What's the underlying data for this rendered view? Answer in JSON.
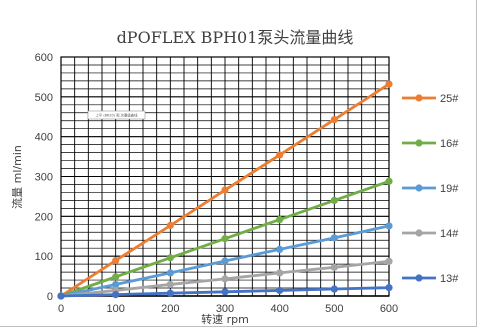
{
  "chart_data": {
    "type": "line",
    "title": "dPOFLEX BPH01泵头流量曲线",
    "xlabel": "转速 rpm",
    "ylabel": "流量 ml/min",
    "x": [
      0,
      100,
      200,
      300,
      400,
      500,
      600
    ],
    "xlim": [
      0,
      600
    ],
    "ylim": [
      0,
      600
    ],
    "xticks": [
      "0",
      "100",
      "200",
      "300",
      "400",
      "500",
      "600"
    ],
    "yticks": [
      "0",
      "100",
      "200",
      "300",
      "400",
      "500",
      "600"
    ],
    "grid": true,
    "legend_position": "right",
    "annotation": "上平 (BR20) 和 次要级曲线",
    "series": [
      {
        "name": "25#",
        "color": "#ED7D31",
        "values": [
          0,
          89,
          177,
          266,
          354,
          443,
          532
        ]
      },
      {
        "name": "16#",
        "color": "#70AD47",
        "values": [
          0,
          48,
          96,
          144,
          192,
          240,
          288
        ]
      },
      {
        "name": "19#",
        "color": "#5B9BD5",
        "values": [
          0,
          29,
          58,
          88,
          117,
          146,
          176
        ]
      },
      {
        "name": "14#",
        "color": "#A5A5A5",
        "values": [
          0,
          14,
          29,
          43,
          58,
          72,
          87
        ]
      },
      {
        "name": "13#",
        "color": "#4472C4",
        "values": [
          0,
          3.5,
          7,
          10.5,
          14,
          17.5,
          21
        ]
      }
    ]
  }
}
